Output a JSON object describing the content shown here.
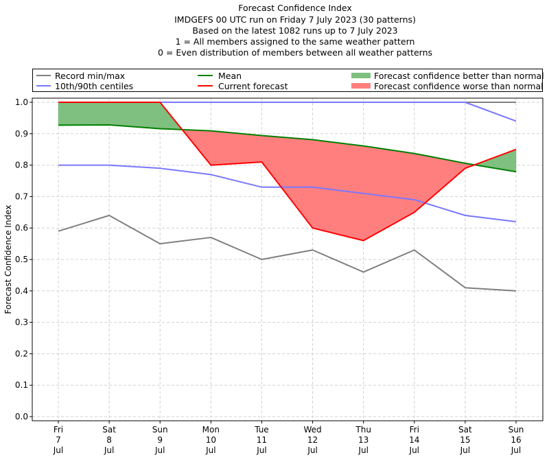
{
  "chart_data": {
    "type": "line",
    "title_lines": [
      "Forecast Confidence Index",
      "IMDGEFS 00 UTC run on Friday 7 July 2023 (30 patterns)",
      "Based on the latest 1082 runs up to 7 July 2023",
      "1 = All members assigned to the same weather pattern",
      "0 = Even distribution of members between all weather patterns"
    ],
    "xlabel": "",
    "ylabel": "Forecast Confidence Index",
    "ylim": [
      0.0,
      1.0
    ],
    "yticks": [
      0.0,
      0.1,
      0.2,
      0.3,
      0.4,
      0.5,
      0.6,
      0.7,
      0.8,
      0.9,
      1.0
    ],
    "ytick_labels": [
      "0.0",
      "0.1",
      "0.2",
      "0.3",
      "0.4",
      "0.5",
      "0.6",
      "0.7",
      "0.8",
      "0.9",
      "1.0"
    ],
    "grid": true,
    "legend_position": "top",
    "categories": [
      {
        "day": "Fri",
        "date": "7",
        "month": "Jul"
      },
      {
        "day": "Sat",
        "date": "8",
        "month": "Jul"
      },
      {
        "day": "Sun",
        "date": "9",
        "month": "Jul"
      },
      {
        "day": "Mon",
        "date": "10",
        "month": "Jul"
      },
      {
        "day": "Tue",
        "date": "11",
        "month": "Jul"
      },
      {
        "day": "Wed",
        "date": "12",
        "month": "Jul"
      },
      {
        "day": "Thu",
        "date": "13",
        "month": "Jul"
      },
      {
        "day": "Fri",
        "date": "14",
        "month": "Jul"
      },
      {
        "day": "Sat",
        "date": "15",
        "month": "Jul"
      },
      {
        "day": "Sun",
        "date": "16",
        "month": "Jul"
      }
    ],
    "series": [
      {
        "name": "Record max",
        "color": "#7f7f7f",
        "values": [
          1.0,
          1.0,
          1.0,
          1.0,
          1.0,
          1.0,
          1.0,
          1.0,
          1.0,
          1.0
        ]
      },
      {
        "name": "Record min",
        "color": "#7f7f7f",
        "values": [
          0.59,
          0.64,
          0.55,
          0.57,
          0.5,
          0.53,
          0.46,
          0.53,
          0.41,
          0.4
        ]
      },
      {
        "name": "90th centile",
        "color": "#7777ff",
        "values": [
          1.0,
          1.0,
          1.0,
          1.0,
          1.0,
          1.0,
          1.0,
          1.0,
          1.0,
          0.94
        ]
      },
      {
        "name": "10th centile",
        "color": "#7777ff",
        "values": [
          0.8,
          0.8,
          0.79,
          0.77,
          0.73,
          0.73,
          0.71,
          0.69,
          0.64,
          0.62
        ]
      },
      {
        "name": "Mean",
        "color": "#008000",
        "values": [
          0.927,
          0.928,
          0.916,
          0.909,
          0.894,
          0.881,
          0.861,
          0.837,
          0.806,
          0.779
        ]
      },
      {
        "name": "Current forecast",
        "color": "#ff0000",
        "values": [
          1.0,
          1.0,
          1.0,
          0.8,
          0.81,
          0.6,
          0.56,
          0.65,
          0.79,
          0.85
        ]
      }
    ],
    "fills": {
      "better": {
        "label": "Forecast confidence better than normal",
        "color": "#7fbf7f"
      },
      "worse": {
        "label": "Forecast confidence worse than normal",
        "color": "#ff7f7f"
      }
    },
    "legend": [
      {
        "label": "Record min/max",
        "color": "#7f7f7f",
        "kind": "line"
      },
      {
        "label": "10th/90th centiles",
        "color": "#7777ff",
        "kind": "line"
      },
      {
        "label": "Mean",
        "color": "#008000",
        "kind": "line"
      },
      {
        "label": "Current forecast",
        "color": "#ff0000",
        "kind": "line"
      },
      {
        "label": "Forecast confidence better than normal",
        "color": "#7fbf7f",
        "kind": "patch"
      },
      {
        "label": "Forecast confidence worse than normal",
        "color": "#ff7f7f",
        "kind": "patch"
      }
    ]
  }
}
